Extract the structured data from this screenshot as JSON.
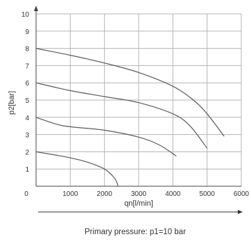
{
  "chart_data": {
    "type": "line",
    "xlabel": "qn[l/min]",
    "ylabel": "p2[bar]",
    "caption": "Primary pressure: p1=10 bar",
    "xlim": [
      0,
      6000
    ],
    "ylim": [
      0,
      10
    ],
    "x_ticks": [
      "0",
      "1000",
      "2000",
      "3000",
      "4000",
      "5000",
      "6000"
    ],
    "y_ticks": [
      "1",
      "2",
      "3",
      "4",
      "5",
      "6",
      "7",
      "8",
      "9",
      "10"
    ],
    "grid": true,
    "series": [
      {
        "points": [
          [
            0,
            8.0
          ],
          [
            1000,
            7.6
          ],
          [
            2000,
            7.15
          ],
          [
            3000,
            6.6
          ],
          [
            4000,
            5.8
          ],
          [
            4600,
            5.0
          ],
          [
            5000,
            4.2
          ],
          [
            5500,
            2.9
          ]
        ]
      },
      {
        "points": [
          [
            0,
            6.0
          ],
          [
            1000,
            5.55
          ],
          [
            2000,
            5.2
          ],
          [
            3000,
            4.85
          ],
          [
            4000,
            4.2
          ],
          [
            4500,
            3.5
          ],
          [
            5000,
            2.2
          ]
        ]
      },
      {
        "points": [
          [
            0,
            4.0
          ],
          [
            600,
            3.6
          ],
          [
            1000,
            3.45
          ],
          [
            2000,
            3.25
          ],
          [
            3000,
            2.85
          ],
          [
            3600,
            2.4
          ],
          [
            4100,
            1.75
          ]
        ]
      },
      {
        "points": [
          [
            0,
            2.0
          ],
          [
            600,
            1.8
          ],
          [
            1000,
            1.65
          ],
          [
            1500,
            1.4
          ],
          [
            2000,
            1.0
          ],
          [
            2300,
            0.45
          ],
          [
            2400,
            0.0
          ]
        ]
      }
    ]
  }
}
